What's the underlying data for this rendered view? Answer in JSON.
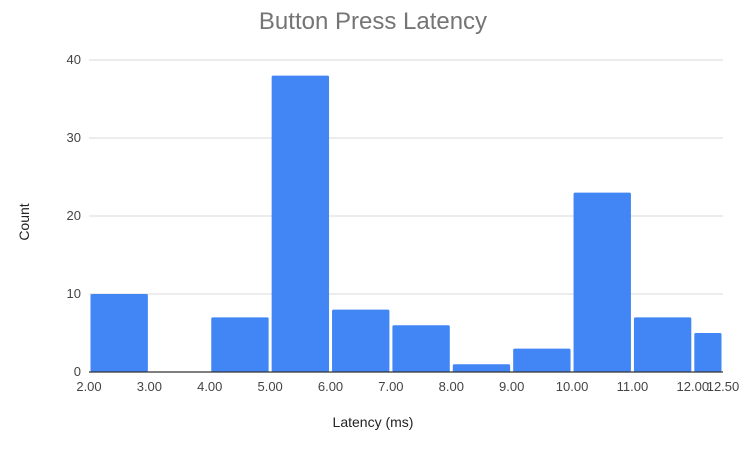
{
  "chart_data": {
    "type": "bar",
    "title": "Button Press Latency",
    "xlabel": "Latency (ms)",
    "ylabel": "Count",
    "ylim": [
      0,
      40
    ],
    "y_ticks": [
      0,
      10,
      20,
      30,
      40
    ],
    "xlim": [
      2.0,
      12.5
    ],
    "x_ticks": [
      "2.00",
      "3.00",
      "4.00",
      "5.00",
      "6.00",
      "7.00",
      "8.00",
      "9.00",
      "10.00",
      "11.00",
      "12.00",
      "12.50"
    ],
    "bins": [
      {
        "from": 2.0,
        "to": 3.0,
        "value": 10
      },
      {
        "from": 3.0,
        "to": 4.0,
        "value": 0
      },
      {
        "from": 4.0,
        "to": 5.0,
        "value": 7
      },
      {
        "from": 5.0,
        "to": 6.0,
        "value": 38
      },
      {
        "from": 6.0,
        "to": 7.0,
        "value": 8
      },
      {
        "from": 7.0,
        "to": 8.0,
        "value": 6
      },
      {
        "from": 8.0,
        "to": 9.0,
        "value": 1
      },
      {
        "from": 9.0,
        "to": 10.0,
        "value": 3
      },
      {
        "from": 10.0,
        "to": 11.0,
        "value": 23
      },
      {
        "from": 11.0,
        "to": 12.0,
        "value": 7
      },
      {
        "from": 12.0,
        "to": 12.5,
        "value": 5
      }
    ],
    "grid": true,
    "colors": {
      "bar": "#4285f4",
      "grid": "#d9d9d9",
      "axis": "#333333"
    }
  }
}
